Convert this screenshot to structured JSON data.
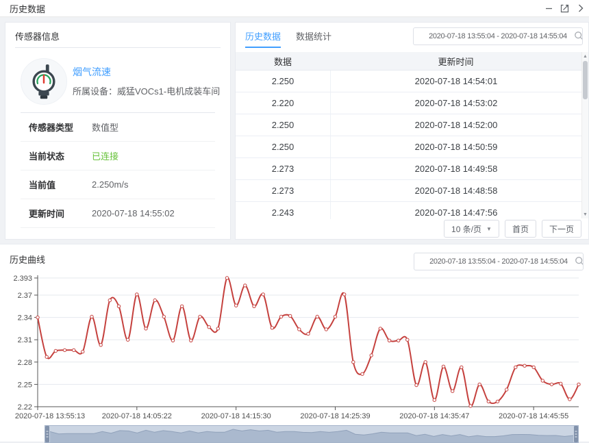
{
  "window": {
    "title": "历史数据",
    "controls": {
      "minimize": "minimize",
      "fullscreen": "fullscreen",
      "collapse": "collapse"
    }
  },
  "sensor_panel": {
    "title": "传感器信息",
    "sensor_name": "烟气流速",
    "device_line": "所属设备：威猛VOCs1-电机成装车间",
    "fields": [
      {
        "label": "传感器类型",
        "value": "数值型",
        "color": "#606266"
      },
      {
        "label": "当前状态",
        "value": "已连接",
        "color": "#67c23a"
      },
      {
        "label": "当前值",
        "value": "2.250m/s",
        "color": "#606266"
      },
      {
        "label": "更新时间",
        "value": "2020-07-18 14:55:02",
        "color": "#606266"
      }
    ]
  },
  "table_panel": {
    "tabs": [
      {
        "label": "历史数据",
        "active": true
      },
      {
        "label": "数据统计",
        "active": false
      }
    ],
    "date_range": "2020-07-18 13:55:04 - 2020-07-18 14:55:04",
    "columns": [
      "数据",
      "更新时间"
    ],
    "rows": [
      [
        "2.250",
        "2020-07-18 14:54:01"
      ],
      [
        "2.220",
        "2020-07-18 14:53:02"
      ],
      [
        "2.250",
        "2020-07-18 14:52:00"
      ],
      [
        "2.250",
        "2020-07-18 14:50:59"
      ],
      [
        "2.273",
        "2020-07-18 14:49:58"
      ],
      [
        "2.273",
        "2020-07-18 14:48:58"
      ],
      [
        "2.243",
        "2020-07-18 14:47:56"
      ]
    ],
    "pagination": {
      "page_size": "10 条/页",
      "first": "首页",
      "next": "下一页"
    }
  },
  "curve_panel": {
    "title": "历史曲线",
    "date_range": "2020-07-18 13:55:04 - 2020-07-18 14:55:04"
  },
  "chart_data": {
    "type": "line",
    "title": "",
    "xlabel": "",
    "ylabel": "",
    "smooth": true,
    "markers": true,
    "grid": true,
    "x_start": "2020-07-18 13:55:13",
    "x_end": "2020-07-18 14:55:04",
    "x_tick_labels": [
      "2020-07-18 13:55:13",
      "2020-07-18 14:05:22",
      "2020-07-18 14:15:30",
      "2020-07-18 14:25:39",
      "2020-07-18 14:35:47",
      "2020-07-18 14:45:55"
    ],
    "x_tick_indices": [
      0,
      11,
      22,
      33,
      44,
      55
    ],
    "y_tick_labels": [
      "2.22",
      "2.25",
      "2.28",
      "2.31",
      "2.34",
      "2.37",
      "2.393"
    ],
    "ylim": [
      2.22,
      2.393
    ],
    "series": [
      {
        "name": "烟气流速",
        "color": "#c5413e",
        "values": [
          2.34,
          2.287,
          2.295,
          2.296,
          2.296,
          2.294,
          2.341,
          2.303,
          2.363,
          2.355,
          2.31,
          2.371,
          2.325,
          2.363,
          2.341,
          2.309,
          2.355,
          2.309,
          2.341,
          2.327,
          2.325,
          2.393,
          2.356,
          2.383,
          2.355,
          2.371,
          2.326,
          2.341,
          2.342,
          2.324,
          2.318,
          2.341,
          2.324,
          2.341,
          2.371,
          2.28,
          2.264,
          2.289,
          2.325,
          2.309,
          2.309,
          2.31,
          2.249,
          2.28,
          2.229,
          2.274,
          2.241,
          2.273,
          2.221,
          2.25,
          2.227,
          2.227,
          2.243,
          2.273,
          2.275,
          2.273,
          2.255,
          2.25,
          2.251,
          2.23,
          2.25
        ]
      }
    ],
    "datazoom": {
      "enabled": true,
      "band_color": "#cbd5e3",
      "fill_color": "#aab9ce",
      "handle_color": "#8292ab"
    }
  },
  "colors": {
    "accent_blue": "#409eff",
    "status_green": "#67c23a",
    "line_red": "#c5413e",
    "panel_bg": "#ffffff",
    "page_bg": "#f0f2f5"
  }
}
